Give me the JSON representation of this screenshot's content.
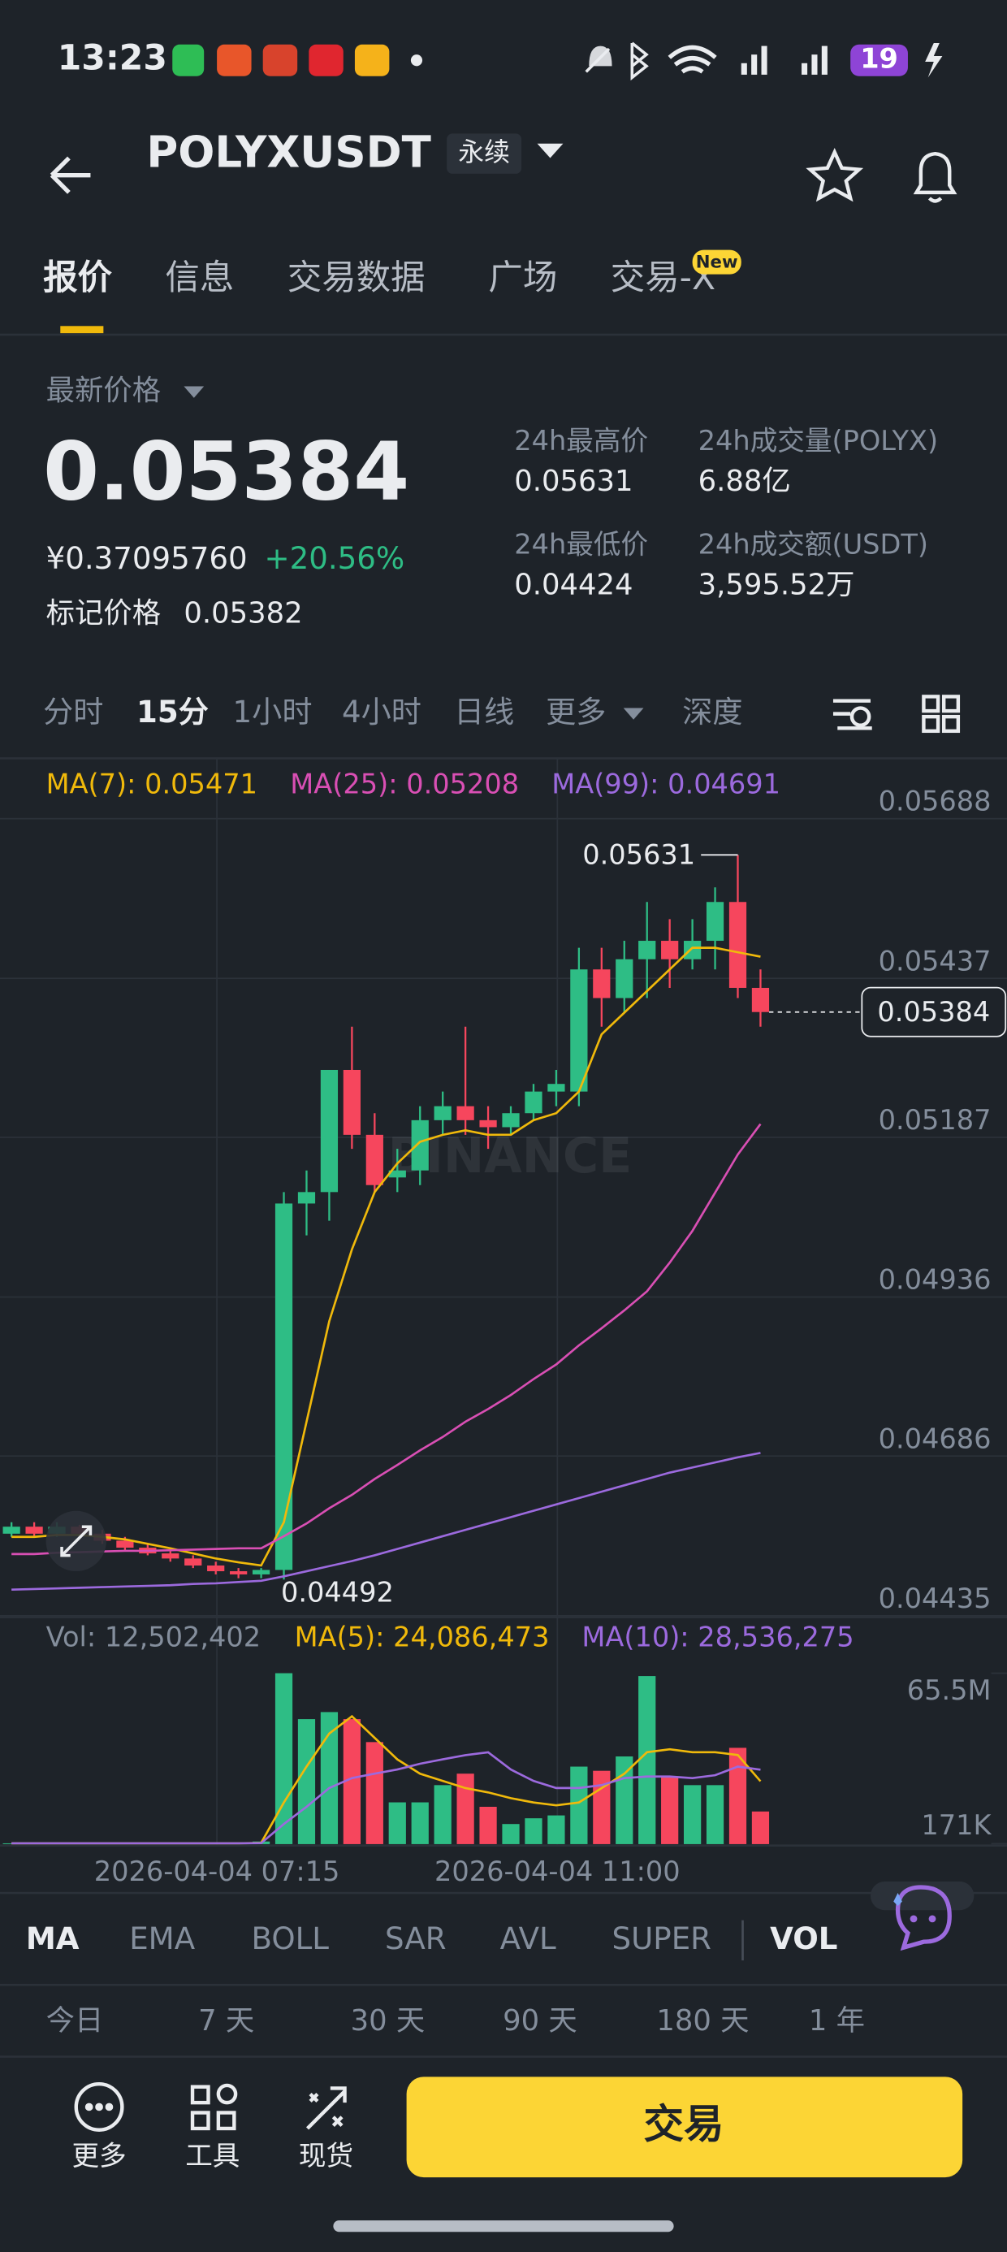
{
  "status_bar": {
    "time": "13:23",
    "battery": "19"
  },
  "header": {
    "symbol": "POLYXUSDT",
    "tag": "永续"
  },
  "tabs": [
    "报价",
    "信息",
    "交易数据",
    "广场",
    "交易-X"
  ],
  "tab_badge": "New",
  "price": {
    "label": "最新价格",
    "last": "0.05384",
    "cny": "¥0.37095760",
    "change": "+20.56%",
    "mark_label": "标记价格",
    "mark": "0.05382"
  },
  "stats": [
    {
      "label": "24h最高价",
      "value": "0.05631"
    },
    {
      "label": "24h成交量(POLYX)",
      "value": "6.88亿"
    },
    {
      "label": "24h最低价",
      "value": "0.04424"
    },
    {
      "label": "24h成交额(USDT)",
      "value": "3,595.52万"
    }
  ],
  "intervals": [
    "分时",
    "15分",
    "1小时",
    "4小时",
    "日线",
    "更多",
    "深度"
  ],
  "chart_data": {
    "type": "candlestick",
    "watermark": "BINANCE",
    "ma_legend": [
      "MA(7): 0.05471",
      "MA(25): 0.05208",
      "MA(99): 0.04691"
    ],
    "ylim": [
      0.04435,
      0.05688
    ],
    "yticks": [
      0.05688,
      0.05437,
      0.05187,
      0.04936,
      0.04686,
      0.04435
    ],
    "grid": true,
    "up_color": "#2ebd85",
    "down_color": "#f6465d",
    "high_label": "0.05631",
    "low_label": "0.04492",
    "last_label": "0.05384",
    "x_labels": [
      "2026-04-04 07:15",
      "2026-04-04 11:00"
    ],
    "open": [
      0.04564,
      0.04575,
      0.04564,
      0.04575,
      0.04564,
      0.04553,
      0.04542,
      0.04533,
      0.04525,
      0.04514,
      0.04505,
      0.045,
      0.04507,
      0.05083,
      0.05101,
      0.05293,
      0.05191,
      0.05124,
      0.05135,
      0.05214,
      0.05236,
      0.05214,
      0.05203,
      0.05225,
      0.05259,
      0.05259,
      0.05451,
      0.05406,
      0.05467,
      0.05496,
      0.05467,
      0.05496,
      0.05557,
      0.05422
    ],
    "high": [
      0.04582,
      0.04582,
      0.04582,
      0.04578,
      0.0457,
      0.04559,
      0.04548,
      0.04537,
      0.0453,
      0.0452,
      0.0451,
      0.0451,
      0.05101,
      0.05135,
      0.05293,
      0.05361,
      0.05225,
      0.05169,
      0.05236,
      0.05259,
      0.05361,
      0.05236,
      0.05236,
      0.05271,
      0.05293,
      0.05485,
      0.05485,
      0.05496,
      0.05557,
      0.0553,
      0.0553,
      0.0558,
      0.05631,
      0.05451
    ],
    "low": [
      0.04559,
      0.04559,
      0.04559,
      0.04559,
      0.04548,
      0.04537,
      0.0453,
      0.0452,
      0.0451,
      0.045,
      0.04494,
      0.04494,
      0.04492,
      0.05033,
      0.05056,
      0.05169,
      0.05101,
      0.05101,
      0.05112,
      0.05191,
      0.05191,
      0.05169,
      0.05191,
      0.05214,
      0.05236,
      0.05236,
      0.05361,
      0.05383,
      0.05406,
      0.05422,
      0.05451,
      0.05451,
      0.05406,
      0.05361
    ],
    "close": [
      0.04575,
      0.04564,
      0.04575,
      0.04564,
      0.04553,
      0.04542,
      0.04533,
      0.04525,
      0.04514,
      0.04505,
      0.045,
      0.04507,
      0.05083,
      0.05101,
      0.05293,
      0.05191,
      0.05112,
      0.05135,
      0.05214,
      0.05236,
      0.05214,
      0.05203,
      0.05225,
      0.05259,
      0.05271,
      0.05451,
      0.05406,
      0.05467,
      0.05496,
      0.05467,
      0.05496,
      0.05557,
      0.05422,
      0.05384
    ],
    "series": [
      {
        "name": "MA(7)",
        "color": "#f0b90b",
        "values": [
          0.04559,
          0.04559,
          0.04562,
          0.04562,
          0.04559,
          0.04555,
          0.04548,
          0.04541,
          0.04533,
          0.04525,
          0.04519,
          0.04514,
          0.04582,
          0.0474,
          0.04898,
          0.05011,
          0.05101,
          0.05146,
          0.0518,
          0.05191,
          0.05198,
          0.05191,
          0.05191,
          0.05214,
          0.05225,
          0.05259,
          0.05349,
          0.05383,
          0.05417,
          0.05451,
          0.05485,
          0.05485,
          0.05478,
          0.05471
        ]
      },
      {
        "name": "MA(25)",
        "color": "#d94fb4",
        "values": [
          0.04532,
          0.04532,
          0.04534,
          0.04535,
          0.04536,
          0.04537,
          0.04537,
          0.04538,
          0.04539,
          0.0454,
          0.04541,
          0.04541,
          0.0456,
          0.0458,
          0.04604,
          0.04625,
          0.0465,
          0.04672,
          0.04695,
          0.04716,
          0.0474,
          0.0476,
          0.04782,
          0.04807,
          0.0483,
          0.0486,
          0.04887,
          0.04915,
          0.04945,
          0.0499,
          0.0504,
          0.051,
          0.0516,
          0.05208
        ]
      },
      {
        "name": "MA(99)",
        "color": "#9c6ade",
        "values": [
          0.04476,
          0.04477,
          0.04478,
          0.04479,
          0.0448,
          0.04481,
          0.04482,
          0.04483,
          0.04485,
          0.04486,
          0.04488,
          0.0449,
          0.04497,
          0.04505,
          0.04513,
          0.04521,
          0.0453,
          0.0454,
          0.0455,
          0.0456,
          0.0457,
          0.0458,
          0.0459,
          0.046,
          0.0461,
          0.0462,
          0.0463,
          0.0464,
          0.0465,
          0.0466,
          0.04668,
          0.04676,
          0.04684,
          0.04691
        ]
      }
    ],
    "volume": {
      "legend": [
        "Vol: 12,502,402",
        "MA(5): 24,086,473",
        "MA(10): 28,536,275"
      ],
      "ylim": [
        0,
        65500000
      ],
      "yticks": [
        {
          "value": 65500000,
          "label": "65.5M"
        },
        {
          "value": 171000,
          "label": "171K"
        }
      ],
      "values": [
        300000,
        300000,
        300000,
        300000,
        300000,
        300000,
        300000,
        300000,
        300000,
        300000,
        300000,
        1000000,
        65500000,
        47900000,
        50600000,
        47900000,
        39100000,
        16000000,
        16000000,
        22600000,
        27000000,
        14300000,
        7700000,
        9900000,
        11000000,
        29700000,
        28100000,
        33600000,
        64400000,
        25900000,
        22600000,
        22600000,
        36900000,
        12502402
      ],
      "series": [
        {
          "name": "MA(5)",
          "color": "#f0b90b",
          "values": [
            300000,
            300000,
            300000,
            300000,
            300000,
            300000,
            300000,
            300000,
            300000,
            300000,
            300000,
            460000,
            15960000,
            29720000,
            42380000,
            48990000,
            40730000,
            32470000,
            26970000,
            24220000,
            21470000,
            19820000,
            17610000,
            15960000,
            14860000,
            15960000,
            21470000,
            26970000,
            35230000,
            36330000,
            35230000,
            35230000,
            34130000,
            24086473
          ]
        },
        {
          "name": "MA(10)",
          "color": "#9c6ade",
          "values": [
            300000,
            300000,
            300000,
            300000,
            300000,
            300000,
            300000,
            300000,
            300000,
            300000,
            300000,
            370000,
            7700000,
            14300000,
            21500000,
            25300000,
            27000000,
            28600000,
            30800000,
            32500000,
            34100000,
            35200000,
            28600000,
            24200000,
            21500000,
            21500000,
            22600000,
            25300000,
            25900000,
            25900000,
            25300000,
            26400000,
            29700000,
            28536275
          ]
        }
      ]
    }
  },
  "indicators": [
    "MA",
    "EMA",
    "BOLL",
    "SAR",
    "AVL",
    "SUPER",
    "VOL"
  ],
  "ranges": [
    "今日",
    "7 天",
    "30 天",
    "90 天",
    "180 天",
    "1 年"
  ],
  "bottom": {
    "buttons": [
      "更多",
      "工具",
      "现货"
    ],
    "trade": "交易"
  }
}
